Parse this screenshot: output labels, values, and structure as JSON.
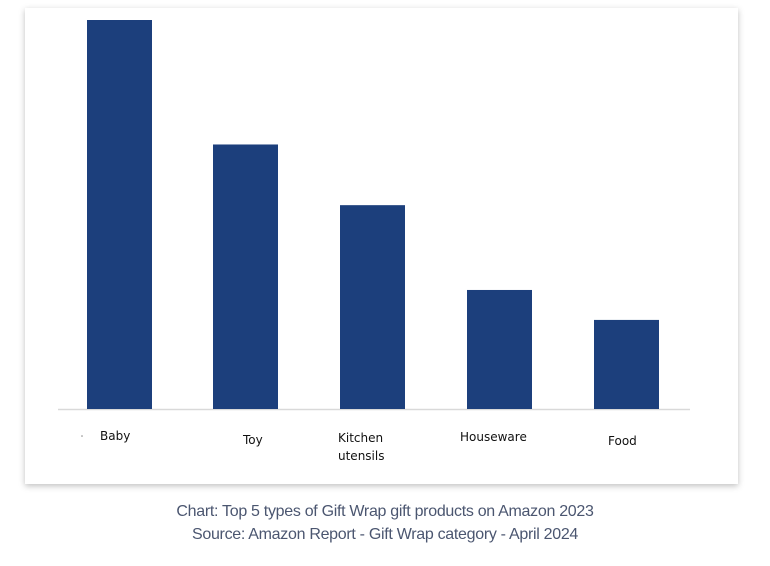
{
  "chart_data": {
    "type": "bar",
    "categories": [
      "Baby",
      "Toy",
      "Kitchen utensils",
      "Houseware",
      "Food"
    ],
    "values": [
      100,
      68,
      52.4,
      30.6,
      22.9
    ],
    "ylim": [
      0,
      100
    ],
    "title": "",
    "xlabel": "",
    "ylabel": "",
    "grid": false,
    "legend": "none",
    "bar_color": "#1c3f7c"
  },
  "caption": {
    "line1": "Chart: Top 5 types of Gift Wrap gift products on Amazon 2023",
    "line2": "Source: Amazon Report - Gift Wrap category - April 2024"
  }
}
